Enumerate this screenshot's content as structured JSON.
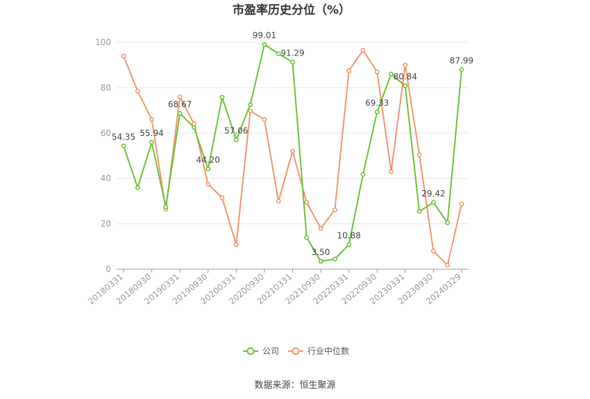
{
  "chart_data": {
    "type": "line",
    "title": "市盈率历史分位（%）",
    "xlabel": "",
    "ylabel": "",
    "ylim": [
      0,
      100
    ],
    "yticks": [
      0,
      20,
      40,
      60,
      80,
      100
    ],
    "x": [
      "20180331",
      "20180630",
      "20180930",
      "20181231",
      "20190331",
      "20190630",
      "20190930",
      "20191231",
      "20200331",
      "20200630",
      "20200930",
      "20201231",
      "20210331",
      "20210630",
      "20210930",
      "20211231",
      "20220331",
      "20220630",
      "20220930",
      "20221231",
      "20230331",
      "20230630",
      "20230930",
      "20231231",
      "20240329"
    ],
    "xtick_labels": [
      "20180331",
      "20180930",
      "20190331",
      "20190930",
      "20200331",
      "20200930",
      "20210331",
      "20210930",
      "20220331",
      "20220930",
      "20230331",
      "20230930",
      "20240329"
    ],
    "series": [
      {
        "name": "公司",
        "color": "#6bc232",
        "values": [
          54.35,
          36.0,
          55.94,
          27.5,
          68.67,
          62.5,
          44.2,
          75.8,
          57.06,
          72.5,
          99.01,
          95.0,
          91.29,
          14.0,
          3.5,
          4.5,
          10.88,
          41.8,
          69.33,
          86.0,
          80.84,
          25.5,
          29.42,
          20.5,
          87.99
        ],
        "labels": {
          "0": "54.35",
          "2": "55.94",
          "4": "68.67",
          "6": "44.20",
          "8": "57.06",
          "10": "99.01",
          "12": "91.29",
          "14": "3.50",
          "16": "10.88",
          "18": "69.33",
          "20": "80.84",
          "22": "29.42",
          "24": "87.99"
        }
      },
      {
        "name": "行业中位数",
        "color": "#f2956b",
        "values": [
          94.0,
          78.5,
          66.0,
          26.5,
          76.0,
          64.0,
          37.5,
          31.5,
          10.8,
          69.8,
          66.0,
          30.0,
          52.0,
          29.5,
          18.0,
          26.2,
          87.5,
          96.5,
          87.0,
          43.0,
          90.0,
          50.5,
          8.0,
          1.8,
          28.8
        ]
      }
    ],
    "legend_position": "bottom",
    "grid": true,
    "source": "数据来源：恒生聚源"
  }
}
